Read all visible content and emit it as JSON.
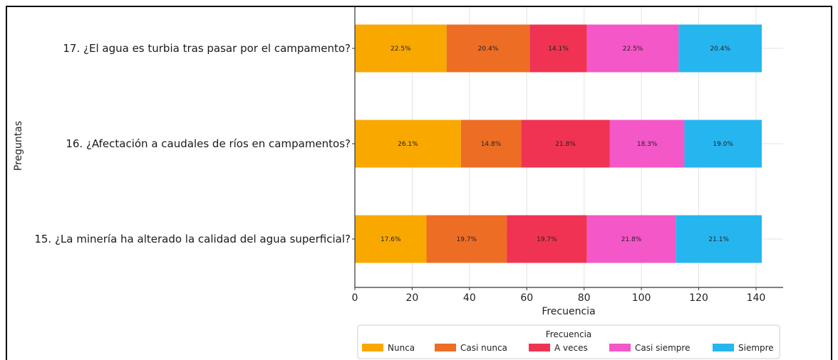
{
  "chart_data": {
    "type": "bar",
    "orientation": "horizontal",
    "stacked": true,
    "categories": [
      "15. ¿La minería ha alterado la calidad del agua superficial?",
      "16. ¿Afectación a caudales de ríos en campamentos?",
      "17. ¿El agua es turbia tras pasar por el campamento?"
    ],
    "series": [
      {
        "name": "Nunca",
        "color": "#f9a800",
        "values": [
          25,
          37,
          32
        ],
        "labels": [
          "17.6%",
          "26.1%",
          "22.5%"
        ]
      },
      {
        "name": "Casi nunca",
        "color": "#ee6d25",
        "values": [
          28,
          21,
          29
        ],
        "labels": [
          "19.7%",
          "14.8%",
          "20.4%"
        ]
      },
      {
        "name": "A veces",
        "color": "#f03352",
        "values": [
          28,
          31,
          20
        ],
        "labels": [
          "19.7%",
          "21.8%",
          "14.1%"
        ]
      },
      {
        "name": "Casi siempre",
        "color": "#f457c7",
        "values": [
          31,
          26,
          32
        ],
        "labels": [
          "21.8%",
          "18.3%",
          "22.5%"
        ]
      },
      {
        "name": "Siempre",
        "color": "#25b6f0",
        "values": [
          30,
          27,
          29
        ],
        "labels": [
          "21.1%",
          "19.0%",
          "20.4%"
        ]
      }
    ],
    "xlabel": "Frecuencia",
    "ylabel": "Preguntas",
    "xlim": [
      0,
      150
    ],
    "xticks": [
      0,
      20,
      40,
      60,
      80,
      100,
      120,
      140
    ],
    "grid": true,
    "legend": {
      "title": "Frecuencia",
      "placement": "bottom"
    }
  }
}
